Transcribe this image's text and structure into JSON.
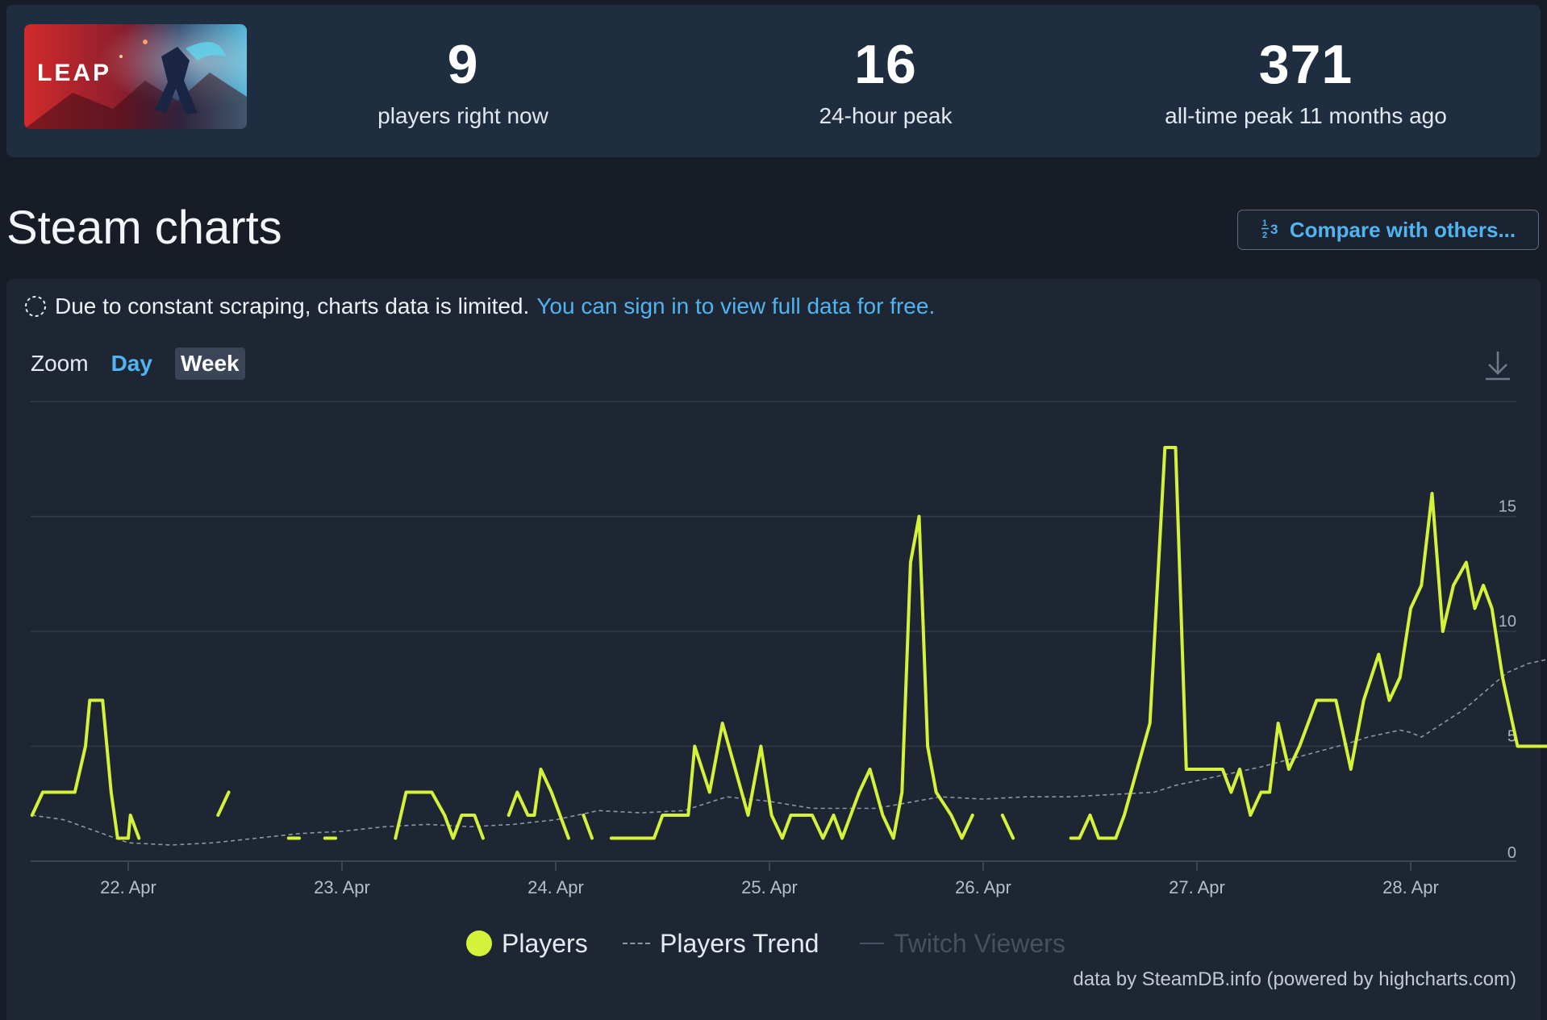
{
  "stats": {
    "current": {
      "value": "9",
      "label": "players right now"
    },
    "peak_24h": {
      "value": "16",
      "label": "24-hour peak"
    },
    "all_time": {
      "value": "371",
      "label": "all-time peak 11 months ago"
    }
  },
  "game": {
    "logo_text": "LEAP"
  },
  "header": {
    "title": "Steam charts",
    "compare_label": "Compare with others...",
    "compare_icon": "1/2 3"
  },
  "notice": {
    "text": "Due to constant scraping, charts data is limited.",
    "link_text": "You can sign in to view full data for free."
  },
  "zoom": {
    "label": "Zoom",
    "options": [
      "Day",
      "Week"
    ],
    "selected": "Week"
  },
  "legend": {
    "players": "Players",
    "trend": "Players Trend",
    "twitch": "Twitch Viewers"
  },
  "credits": "data by SteamDB.info (powered by highcharts.com)",
  "colors": {
    "players": "#d4f23a",
    "trend": "#8d96a3",
    "link": "#4fb5f0"
  },
  "chart_data": {
    "type": "line",
    "x_tick_labels": [
      "22. Apr",
      "23. Apr",
      "24. Apr",
      "25. Apr",
      "26. Apr",
      "27. Apr",
      "28. Apr"
    ],
    "y_tick_labels": [
      "0",
      "5",
      "10",
      "15"
    ],
    "ylim": [
      0,
      20
    ],
    "xlim": [
      -0.45,
      6.5
    ],
    "grid": true,
    "legend_position": "bottom-center",
    "series": [
      {
        "name": "Players",
        "style": "solid",
        "segments": [
          [
            [
              -0.45,
              2
            ],
            [
              -0.4,
              3
            ],
            [
              -0.28,
              3
            ],
            [
              -0.25,
              3
            ],
            [
              -0.2,
              5
            ],
            [
              -0.18,
              7
            ],
            [
              -0.12,
              7
            ],
            [
              -0.08,
              3
            ],
            [
              -0.05,
              1
            ],
            [
              0.0,
              1
            ],
            [
              0.01,
              2
            ],
            [
              0.05,
              1
            ]
          ],
          [
            [
              0.42,
              2
            ],
            [
              0.47,
              3
            ]
          ],
          [
            [
              0.75,
              1
            ],
            [
              0.8,
              1
            ]
          ],
          [
            [
              0.92,
              1
            ],
            [
              0.97,
              1
            ]
          ],
          [
            [
              1.25,
              1
            ],
            [
              1.3,
              3
            ],
            [
              1.42,
              3
            ],
            [
              1.48,
              2
            ],
            [
              1.52,
              1
            ],
            [
              1.56,
              2
            ],
            [
              1.62,
              2
            ],
            [
              1.66,
              1
            ]
          ],
          [
            [
              1.78,
              2
            ],
            [
              1.82,
              3
            ],
            [
              1.87,
              2
            ],
            [
              1.9,
              2
            ],
            [
              1.93,
              4
            ],
            [
              1.98,
              3
            ],
            [
              2.02,
              2
            ],
            [
              2.06,
              1
            ]
          ],
          [
            [
              2.13,
              2
            ],
            [
              2.17,
              1
            ]
          ],
          [
            [
              2.26,
              1
            ],
            [
              2.46,
              1
            ],
            [
              2.5,
              2
            ],
            [
              2.62,
              2
            ],
            [
              2.65,
              5
            ],
            [
              2.72,
              3
            ],
            [
              2.78,
              6
            ],
            [
              2.9,
              2
            ],
            [
              2.96,
              5
            ],
            [
              3.01,
              2
            ],
            [
              3.06,
              1
            ],
            [
              3.1,
              2
            ],
            [
              3.2,
              2
            ],
            [
              3.25,
              1
            ],
            [
              3.3,
              2
            ],
            [
              3.34,
              1
            ],
            [
              3.42,
              3
            ],
            [
              3.47,
              4
            ],
            [
              3.53,
              2
            ],
            [
              3.58,
              1
            ],
            [
              3.62,
              3
            ],
            [
              3.66,
              13
            ],
            [
              3.7,
              15
            ],
            [
              3.74,
              5
            ],
            [
              3.78,
              3
            ],
            [
              3.85,
              2
            ],
            [
              3.9,
              1
            ],
            [
              3.95,
              2
            ]
          ],
          [
            [
              4.09,
              2
            ],
            [
              4.14,
              1
            ]
          ],
          [
            [
              4.41,
              1
            ],
            [
              4.45,
              1
            ],
            [
              4.5,
              2
            ],
            [
              4.54,
              1
            ],
            [
              4.62,
              1
            ],
            [
              4.66,
              2
            ],
            [
              4.72,
              4
            ],
            [
              4.78,
              6
            ],
            [
              4.85,
              18
            ],
            [
              4.9,
              18
            ],
            [
              4.95,
              4
            ],
            [
              5.12,
              4
            ],
            [
              5.16,
              3
            ],
            [
              5.2,
              4
            ],
            [
              5.25,
              2
            ],
            [
              5.3,
              3
            ],
            [
              5.34,
              3
            ],
            [
              5.38,
              6
            ],
            [
              5.43,
              4
            ],
            [
              5.48,
              5
            ],
            [
              5.56,
              7
            ],
            [
              5.65,
              7
            ],
            [
              5.72,
              4
            ],
            [
              5.78,
              7
            ],
            [
              5.85,
              9
            ],
            [
              5.9,
              7
            ],
            [
              5.95,
              8
            ],
            [
              6.0,
              11
            ],
            [
              6.05,
              12
            ],
            [
              6.1,
              16
            ],
            [
              6.15,
              10
            ],
            [
              6.2,
              12
            ],
            [
              6.26,
              13
            ],
            [
              6.3,
              11
            ],
            [
              6.34,
              12
            ],
            [
              6.38,
              11
            ],
            [
              6.43,
              8
            ],
            [
              6.5,
              5
            ],
            [
              6.6,
              5
            ],
            [
              6.65,
              5
            ],
            [
              6.7,
              9
            ]
          ]
        ]
      },
      {
        "name": "Players Trend",
        "style": "dashed",
        "points": [
          [
            -0.45,
            2
          ],
          [
            -0.3,
            1.8
          ],
          [
            -0.15,
            1.3
          ],
          [
            0.0,
            0.8
          ],
          [
            0.2,
            0.7
          ],
          [
            0.4,
            0.8
          ],
          [
            0.6,
            1.0
          ],
          [
            0.8,
            1.2
          ],
          [
            1.0,
            1.3
          ],
          [
            1.2,
            1.5
          ],
          [
            1.4,
            1.6
          ],
          [
            1.6,
            1.5
          ],
          [
            1.8,
            1.6
          ],
          [
            2.0,
            1.8
          ],
          [
            2.2,
            2.2
          ],
          [
            2.4,
            2.1
          ],
          [
            2.6,
            2.2
          ],
          [
            2.8,
            2.8
          ],
          [
            3.0,
            2.6
          ],
          [
            3.2,
            2.3
          ],
          [
            3.5,
            2.3
          ],
          [
            3.8,
            2.8
          ],
          [
            4.0,
            2.7
          ],
          [
            4.2,
            2.8
          ],
          [
            4.4,
            2.8
          ],
          [
            4.6,
            2.9
          ],
          [
            4.8,
            3.0
          ],
          [
            4.9,
            3.3
          ],
          [
            5.1,
            3.7
          ],
          [
            5.3,
            4.1
          ],
          [
            5.5,
            4.6
          ],
          [
            5.7,
            5.1
          ],
          [
            5.8,
            5.4
          ],
          [
            5.95,
            5.7
          ],
          [
            6.0,
            5.6
          ],
          [
            6.05,
            5.4
          ],
          [
            6.15,
            6.0
          ],
          [
            6.25,
            6.6
          ],
          [
            6.35,
            7.4
          ],
          [
            6.45,
            8.2
          ],
          [
            6.55,
            8.6
          ],
          [
            6.65,
            8.8
          ],
          [
            6.7,
            8.7
          ]
        ]
      },
      {
        "name": "Twitch Viewers",
        "style": "solid-faint",
        "points": []
      }
    ]
  }
}
